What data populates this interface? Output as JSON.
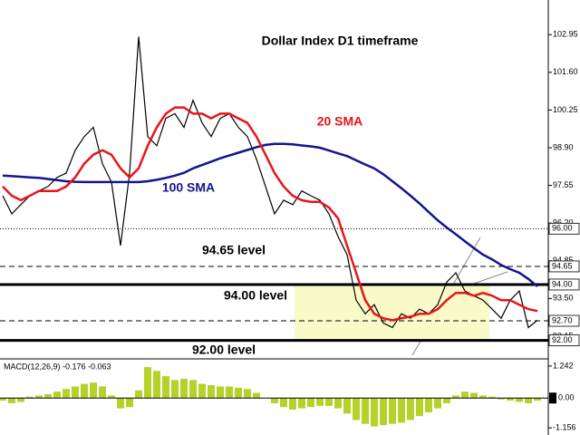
{
  "chart_data": {
    "type": "line",
    "title": "Dollar Index D1 timeframe",
    "ylim": [
      91.37,
      104.19
    ],
    "yticks": [
      102.95,
      {
        "value": 101.6,
        "label": "101.60"
      },
      {
        "value": 100.25,
        "label": "100.25"
      },
      {
        "value": 98.9,
        "label": "98.90"
      },
      97.55,
      {
        "value": 96.2,
        "label": "96.20"
      },
      94.85,
      {
        "value": 93.5,
        "label": "93.50"
      },
      92.15
    ],
    "price": {
      "color": "#000000",
      "values": [
        97.18,
        96.53,
        96.86,
        97.18,
        97.35,
        97.51,
        97.84,
        97.99,
        98.81,
        99.3,
        99.63,
        98.33,
        97.67,
        95.39,
        97.99,
        102.88,
        99.3,
        98.97,
        99.95,
        100.12,
        99.63,
        100.6,
        99.79,
        99.3,
        99.95,
        100.12,
        99.63,
        99.3,
        98.49,
        97.51,
        96.53,
        97.02,
        96.86,
        97.35,
        97.18,
        97.02,
        96.53,
        95.72,
        95.07,
        93.44,
        92.95,
        93.28,
        92.62,
        92.46,
        92.95,
        92.79,
        93.12,
        92.95,
        93.28,
        94.09,
        94.42,
        93.77,
        93.6,
        93.44,
        93.12,
        92.79,
        93.44,
        93.77,
        92.46,
        92.72
      ]
    },
    "sma20": {
      "color": "#e8141a",
      "values": [
        97.51,
        97.18,
        97.02,
        97.18,
        97.35,
        97.35,
        97.35,
        97.51,
        97.84,
        98.33,
        98.65,
        98.81,
        98.65,
        98.16,
        97.84,
        98.16,
        98.97,
        99.63,
        100.12,
        100.34,
        100.34,
        100.12,
        100.12,
        99.95,
        100.12,
        100.12,
        99.95,
        99.79,
        99.3,
        98.65,
        97.99,
        97.51,
        97.18,
        97.02,
        96.96,
        96.96,
        96.76,
        96.37,
        95.39,
        94.42,
        93.44,
        92.95,
        92.79,
        92.72,
        92.79,
        92.85,
        92.95,
        92.95,
        93.12,
        93.44,
        93.7,
        93.7,
        93.6,
        93.7,
        93.6,
        93.44,
        93.44,
        93.28,
        93.12,
        93.05
      ]
    },
    "sma100": {
      "color": "#14148c",
      "values": [
        97.9,
        97.88,
        97.86,
        97.84,
        97.82,
        97.78,
        97.74,
        97.7,
        97.68,
        97.67,
        97.67,
        97.67,
        97.67,
        97.67,
        97.67,
        97.67,
        97.7,
        97.75,
        97.82,
        97.9,
        98.0,
        98.16,
        98.28,
        98.4,
        98.52,
        98.62,
        98.72,
        98.82,
        98.92,
        99.0,
        99.04,
        99.04,
        99.02,
        98.98,
        98.95,
        98.9,
        98.8,
        98.7,
        98.6,
        98.45,
        98.3,
        98.16,
        97.95,
        97.7,
        97.45,
        97.18,
        96.9,
        96.6,
        96.3,
        96.04,
        95.8,
        95.55,
        95.3,
        95.07,
        94.9,
        94.7,
        94.55,
        94.42,
        94.2,
        93.93
      ]
    },
    "levels": [
      {
        "value": 96.0,
        "label": "96.00",
        "style": "dotted"
      },
      {
        "value": 94.65,
        "label": "94.65",
        "style": "dashed"
      },
      {
        "value": 94.0,
        "label": "94.00",
        "style": "thick"
      },
      {
        "value": 92.7,
        "label": "92.70",
        "style": "dashed"
      },
      {
        "value": 92.0,
        "label": "92.00",
        "style": "thick"
      }
    ],
    "zone_color": "#fafac8",
    "annotations": [
      {
        "text": "20 SMA",
        "color": "#e8141a"
      },
      {
        "text": "100 SMA",
        "color": "#14148c"
      },
      {
        "text": "94.65 level",
        "color": "#000000"
      },
      {
        "text": "94.00 level",
        "color": "#000000"
      },
      {
        "text": "92.00 level",
        "color": "#000000"
      }
    ],
    "macd": {
      "label": "MACD(12,26,9) -0.176 -0.063",
      "color": "#b4d228",
      "ylim": [
        -1.432,
        1.449
      ],
      "yticks": [
        1.242,
        {
          "value": 0,
          "label": "0.00"
        },
        -1.156
      ],
      "values": [
        -0.1,
        -0.2,
        -0.15,
        0.05,
        0.1,
        0.15,
        0.25,
        0.35,
        0.45,
        0.55,
        0.6,
        0.45,
        0.1,
        -0.4,
        -0.35,
        0.3,
        1.2,
        1.05,
        0.85,
        0.7,
        0.75,
        0.7,
        0.55,
        0.5,
        0.45,
        0.45,
        0.4,
        0.35,
        0.2,
        0.0,
        -0.2,
        -0.35,
        -0.45,
        -0.4,
        -0.35,
        -0.3,
        -0.3,
        -0.4,
        -0.6,
        -0.85,
        -1.0,
        -1.1,
        -1.05,
        -1.0,
        -0.95,
        -0.85,
        -0.7,
        -0.55,
        -0.4,
        -0.2,
        0.1,
        0.25,
        0.2,
        0.1,
        0.05,
        -0.05,
        -0.1,
        -0.15,
        -0.2,
        -0.1
      ]
    }
  }
}
